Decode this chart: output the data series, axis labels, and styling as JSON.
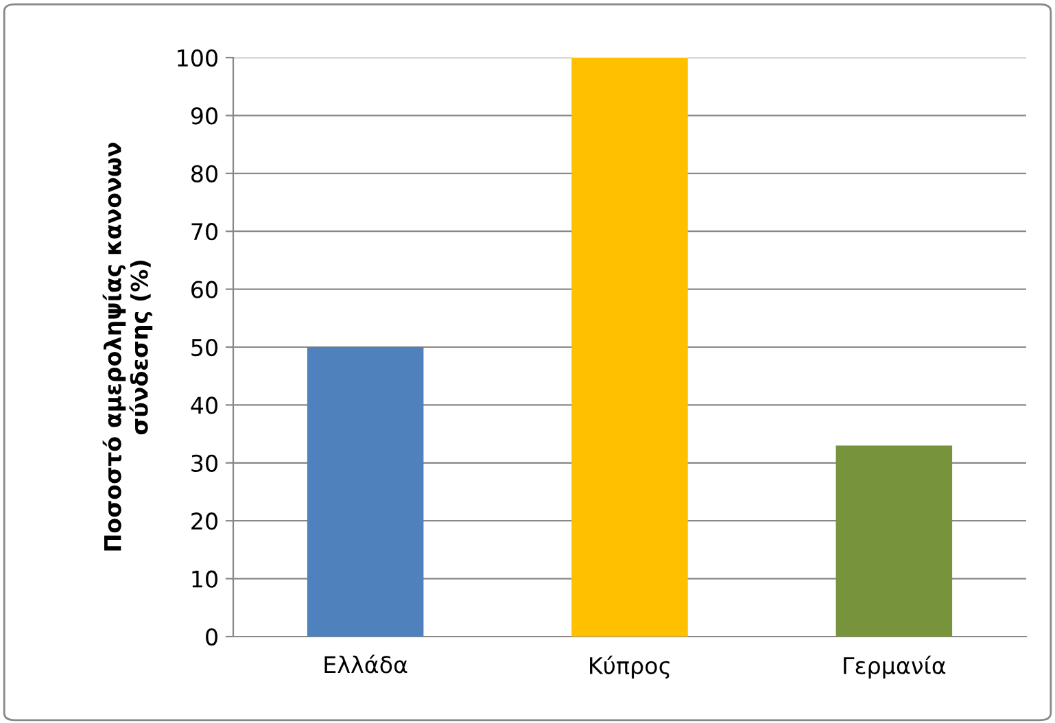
{
  "chart_data": {
    "type": "bar",
    "ylabel": "Ποσοστό αμεροληψίας κανονων\nσύνδεσης (%)",
    "categories": [
      "Ελλάδα",
      "Κύπρος",
      "Γερμανία"
    ],
    "values": [
      50,
      100,
      33
    ],
    "colors": [
      "#4f81bd",
      "#ffc000",
      "#77933c"
    ],
    "ylim": [
      0,
      100
    ],
    "yticks": [
      0,
      10,
      20,
      30,
      40,
      50,
      60,
      70,
      80,
      90,
      100
    ],
    "grid": "y"
  }
}
